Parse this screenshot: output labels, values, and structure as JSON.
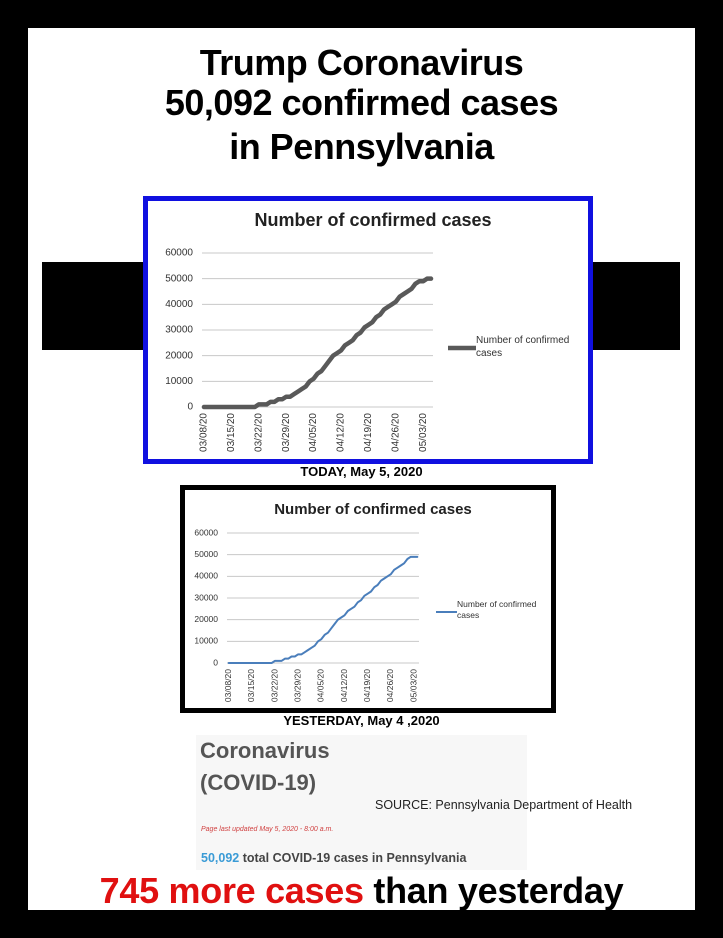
{
  "header": {
    "title": [
      "Trump Coronavirus",
      "50,092 confirmed cases",
      "in Pennsylvania"
    ]
  },
  "chart_data": [
    {
      "type": "line",
      "title": "Number of confirmed cases",
      "categories": [
        "03/08/20",
        null,
        null,
        null,
        null,
        null,
        null,
        "03/15/20",
        null,
        null,
        null,
        null,
        null,
        null,
        "03/22/20",
        null,
        null,
        null,
        null,
        null,
        null,
        "03/29/20",
        null,
        null,
        null,
        null,
        null,
        null,
        "04/05/20",
        null,
        null,
        null,
        null,
        null,
        null,
        "04/12/20",
        null,
        null,
        null,
        null,
        null,
        null,
        "04/19/20",
        null,
        null,
        null,
        null,
        null,
        null,
        "04/26/20",
        null,
        null,
        null,
        null,
        null,
        null,
        "05/03/20",
        null,
        null
      ],
      "series": [
        {
          "name": "Number of confirmed cases",
          "color": "#595959",
          "values": [
            0,
            0,
            0,
            0,
            0,
            0,
            0,
            0,
            0,
            0,
            0,
            0,
            0,
            0,
            1000,
            1000,
            1000,
            2000,
            2000,
            3000,
            3000,
            4000,
            4000,
            5000,
            6000,
            7000,
            8000,
            10000,
            11000,
            13000,
            14000,
            16000,
            18000,
            20000,
            21000,
            22000,
            24000,
            25000,
            26000,
            28000,
            29000,
            31000,
            32000,
            33000,
            35000,
            36000,
            38000,
            39000,
            40000,
            41000,
            43000,
            44000,
            45000,
            46000,
            48000,
            49000,
            49000,
            50000,
            50000
          ]
        }
      ],
      "ylim": [
        0,
        60000
      ],
      "yticks": [
        0,
        10000,
        20000,
        30000,
        40000,
        50000,
        60000
      ],
      "grid": true,
      "legend": "right"
    },
    {
      "type": "line",
      "title": "Number of confirmed cases",
      "categories": [
        "03/08/20",
        null,
        null,
        null,
        null,
        null,
        null,
        "03/15/20",
        null,
        null,
        null,
        null,
        null,
        null,
        "03/22/20",
        null,
        null,
        null,
        null,
        null,
        null,
        "03/29/20",
        null,
        null,
        null,
        null,
        null,
        null,
        "04/05/20",
        null,
        null,
        null,
        null,
        null,
        null,
        "04/12/20",
        null,
        null,
        null,
        null,
        null,
        null,
        "04/19/20",
        null,
        null,
        null,
        null,
        null,
        null,
        "04/26/20",
        null,
        null,
        null,
        null,
        null,
        null,
        "05/03/20",
        null
      ],
      "series": [
        {
          "name": "Number of confirmed cases",
          "color": "#4a7ebb",
          "values": [
            0,
            0,
            0,
            0,
            0,
            0,
            0,
            0,
            0,
            0,
            0,
            0,
            0,
            0,
            1000,
            1000,
            1000,
            2000,
            2000,
            3000,
            3000,
            4000,
            4000,
            5000,
            6000,
            7000,
            8000,
            10000,
            11000,
            13000,
            14000,
            16000,
            18000,
            20000,
            21000,
            22000,
            24000,
            25000,
            26000,
            28000,
            29000,
            31000,
            32000,
            33000,
            35000,
            36000,
            38000,
            39000,
            40000,
            41000,
            43000,
            44000,
            45000,
            46000,
            48000,
            49000,
            49000,
            49000
          ]
        }
      ],
      "ylim": [
        0,
        60000
      ],
      "yticks": [
        0,
        10000,
        20000,
        30000,
        40000,
        50000,
        60000
      ],
      "grid": true,
      "legend": "right"
    }
  ],
  "captions": [
    "TODAY, May 5, 2020",
    "YESTERDAY, May 4 ,2020"
  ],
  "source_panel": {
    "heading": [
      "Coronavirus",
      "(COVID-19)"
    ],
    "note": "SOURCE: Pennsylvania Department of Health",
    "updated": "Page last updated May 5, 2020 - 8:00 a.m.",
    "total_count": "50,092",
    "total_text": "total COVID-19 cases in Pennsylvania"
  },
  "footer": {
    "highlight": "745 more cases",
    "rest": "than yesterday"
  }
}
